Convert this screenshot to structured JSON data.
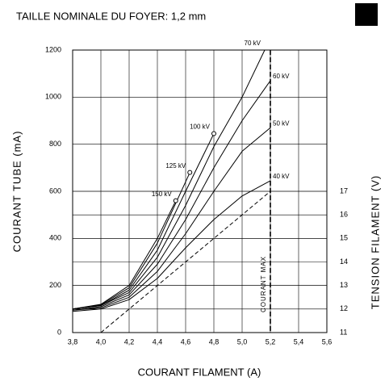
{
  "chart_data": {
    "type": "line",
    "title": "TAILLE NOMINALE DU FOYER: 1,2  mm",
    "x_label": "COURANT FILAMENT (A)",
    "y_label": "COURANT TUBE (mA)",
    "y2_label": "TENSION FILAMENT (V)",
    "xlim": [
      3.8,
      5.6
    ],
    "xticks": [
      {
        "value": 3.8,
        "label": "3,8"
      },
      {
        "value": 4.0,
        "label": "4,0"
      },
      {
        "value": 4.2,
        "label": "4,2"
      },
      {
        "value": 4.4,
        "label": "4,4"
      },
      {
        "value": 4.6,
        "label": "4,6"
      },
      {
        "value": 4.8,
        "label": "4,8"
      },
      {
        "value": 5.0,
        "label": "5,0"
      },
      {
        "value": 5.2,
        "label": "5,2"
      },
      {
        "value": 5.4,
        "label": "5,4"
      },
      {
        "value": 5.6,
        "label": "5,6"
      }
    ],
    "ylim": [
      0,
      1200
    ],
    "yticks": [
      0,
      200,
      400,
      600,
      800,
      1000,
      1200
    ],
    "y2lim": [
      11,
      23
    ],
    "y2ticks": [
      11,
      12,
      13,
      14,
      15,
      16,
      17
    ],
    "grid": true,
    "max_line": {
      "x": 5.2,
      "label": "COURANT MAX"
    },
    "series": [
      {
        "name": "40 kV",
        "color": "#000000",
        "x": [
          3.8,
          4.0,
          4.2,
          4.4,
          4.6,
          4.8,
          5.0,
          5.2
        ],
        "values": [
          90,
          100,
          140,
          230,
          360,
          480,
          580,
          645
        ]
      },
      {
        "name": "50 kV",
        "color": "#000000",
        "x": [
          3.8,
          4.0,
          4.2,
          4.4,
          4.6,
          4.8,
          5.0,
          5.2
        ],
        "values": [
          95,
          105,
          150,
          260,
          420,
          600,
          770,
          870
        ]
      },
      {
        "name": "60 kV",
        "color": "#000000",
        "x": [
          3.8,
          4.0,
          4.2,
          4.4,
          4.6,
          4.8,
          5.0,
          5.2
        ],
        "values": [
          95,
          110,
          160,
          290,
          480,
          700,
          900,
          1070
        ]
      },
      {
        "name": "70 kV",
        "color": "#000000",
        "x": [
          3.8,
          4.0,
          4.2,
          4.4,
          4.6,
          4.8,
          5.0,
          5.16
        ],
        "values": [
          100,
          115,
          170,
          320,
          540,
          790,
          1000,
          1200
        ]
      },
      {
        "name": "100 kV",
        "color": "#000000",
        "marker_end": true,
        "x": [
          3.8,
          4.0,
          4.2,
          4.4,
          4.6,
          4.8
        ],
        "values": [
          100,
          115,
          180,
          350,
          600,
          845
        ]
      },
      {
        "name": "125 kV",
        "color": "#000000",
        "marker_end": true,
        "x": [
          3.8,
          4.0,
          4.2,
          4.4,
          4.63
        ],
        "values": [
          100,
          118,
          190,
          380,
          680
        ]
      },
      {
        "name": "150 kV",
        "color": "#000000",
        "marker_end": true,
        "x": [
          3.8,
          4.0,
          4.2,
          4.4,
          4.53
        ],
        "values": [
          100,
          120,
          200,
          400,
          560
        ]
      },
      {
        "axis": "y2",
        "dashed": true,
        "color": "#000000",
        "x": [
          4.0,
          5.2
        ],
        "values": [
          11,
          17
        ]
      }
    ]
  }
}
